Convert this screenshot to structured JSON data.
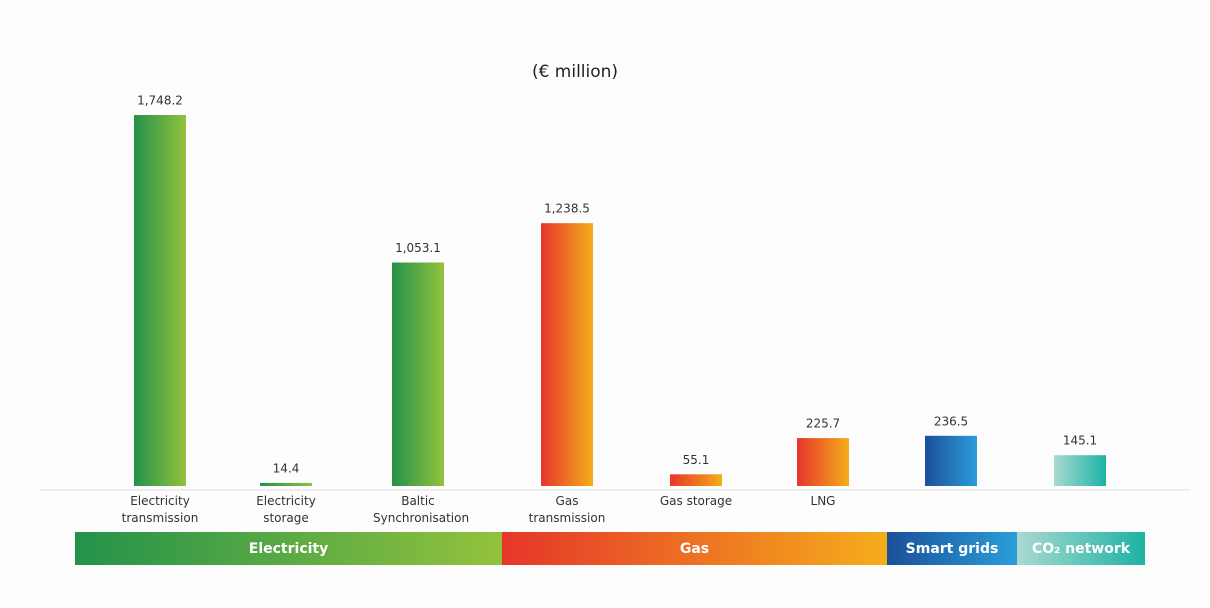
{
  "chart_data": {
    "type": "bar",
    "title": "(€ million)",
    "series": [
      {
        "name": "Electricity",
        "colors": [
          "#23924a",
          "#93c23d"
        ],
        "categories": [
          "Electricity transmission",
          "Electricity storage",
          "Baltic Synchronisation"
        ],
        "values": [
          1748.2,
          14.4,
          1053.1
        ],
        "value_labels": [
          "1,748.2",
          "14.4",
          "1,053.1"
        ]
      },
      {
        "name": "Gas",
        "colors": [
          "#e5362a",
          "#f5ad1b"
        ],
        "categories": [
          "Gas transmission",
          "Gas storage",
          "LNG"
        ],
        "values": [
          1238.5,
          55.1,
          225.7
        ],
        "value_labels": [
          "1,238.5",
          "55.1",
          "225.7"
        ]
      },
      {
        "name": "Smart grids",
        "colors": [
          "#1c4f9a",
          "#2a9ed9"
        ],
        "categories": [
          null
        ],
        "values": [
          236.5
        ],
        "value_labels": [
          "236.5"
        ]
      },
      {
        "name": "CO₂ network",
        "colors": [
          "#a9d9d1",
          "#1db3a4"
        ],
        "categories": [
          null
        ],
        "values": [
          145.1
        ],
        "value_labels": [
          "145.1"
        ]
      }
    ]
  }
}
